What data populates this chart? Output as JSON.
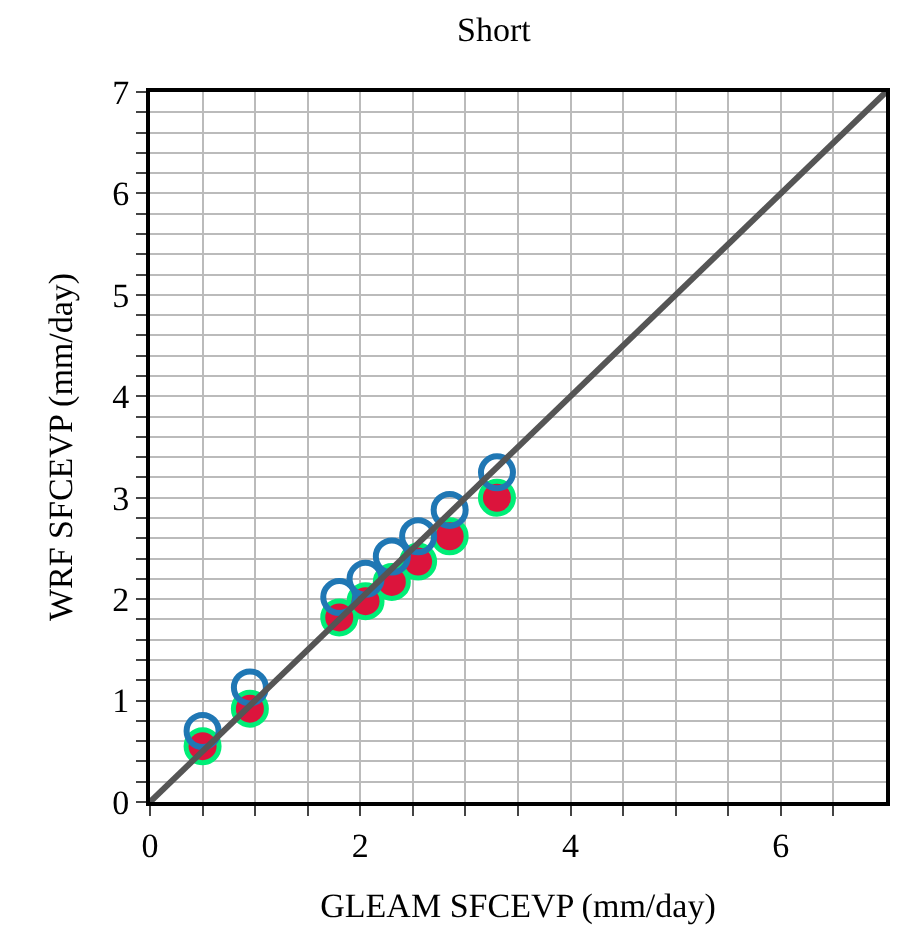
{
  "chart_data": {
    "type": "scatter",
    "title": "Short",
    "xlabel": "GLEAM SFCEVP (mm/day)",
    "ylabel": "WRF SFCEVP (mm/day)",
    "x": [
      0.5,
      0.95,
      1.8,
      2.05,
      2.3,
      2.55,
      2.85,
      3.3
    ],
    "series": [
      {
        "color": "#00ee77",
        "marker": "circle-open",
        "values": [
          0.55,
          0.92,
          1.82,
          1.98,
          2.17,
          2.37,
          2.62,
          3.0
        ]
      },
      {
        "color": "#dc143c",
        "marker": "circle",
        "values": [
          0.55,
          0.92,
          1.82,
          1.98,
          2.17,
          2.37,
          2.62,
          3.0
        ]
      },
      {
        "color": "#1f77b4",
        "marker": "circle-open",
        "values": [
          0.7,
          1.13,
          2.02,
          2.2,
          2.42,
          2.62,
          2.88,
          3.25
        ]
      },
      {
        "type": "line",
        "color": "#555555",
        "marker": "none",
        "x": [
          0,
          7
        ],
        "values": [
          0,
          7
        ]
      }
    ],
    "xlim": [
      0,
      7
    ],
    "ylim": [
      0,
      7
    ],
    "xticks": [
      0,
      {
        "value": 0.5,
        "label": null
      },
      {
        "value": 1,
        "label": null
      },
      {
        "value": 1.5,
        "label": null
      },
      2,
      {
        "value": 2.5,
        "label": null
      },
      {
        "value": 3,
        "label": null
      },
      {
        "value": 3.5,
        "label": null
      },
      4,
      {
        "value": 4.5,
        "label": null
      },
      {
        "value": 5,
        "label": null
      },
      {
        "value": 5.5,
        "label": null
      },
      6,
      {
        "value": 6.5,
        "label": null
      }
    ],
    "yticks": [
      0,
      {
        "value": 0.2,
        "label": null
      },
      {
        "value": 0.4,
        "label": null
      },
      {
        "value": 0.6,
        "label": null
      },
      {
        "value": 0.8,
        "label": null
      },
      1,
      {
        "value": 1.2,
        "label": null
      },
      {
        "value": 1.4,
        "label": null
      },
      {
        "value": 1.6,
        "label": null
      },
      {
        "value": 1.8,
        "label": null
      },
      2,
      {
        "value": 2.2,
        "label": null
      },
      {
        "value": 2.4,
        "label": null
      },
      {
        "value": 2.6,
        "label": null
      },
      {
        "value": 2.8,
        "label": null
      },
      3,
      {
        "value": 3.2,
        "label": null
      },
      {
        "value": 3.4,
        "label": null
      },
      {
        "value": 3.6,
        "label": null
      },
      {
        "value": 3.8,
        "label": null
      },
      4,
      {
        "value": 4.2,
        "label": null
      },
      {
        "value": 4.4,
        "label": null
      },
      {
        "value": 4.6,
        "label": null
      },
      {
        "value": 4.8,
        "label": null
      },
      5,
      {
        "value": 5.2,
        "label": null
      },
      {
        "value": 5.4,
        "label": null
      },
      {
        "value": 5.6,
        "label": null
      },
      {
        "value": 5.8,
        "label": null
      },
      6,
      {
        "value": 6.2,
        "label": null
      },
      {
        "value": 6.4,
        "label": null
      },
      {
        "value": 6.6,
        "label": null
      },
      {
        "value": 6.8,
        "label": null
      },
      7
    ],
    "grid": true
  }
}
